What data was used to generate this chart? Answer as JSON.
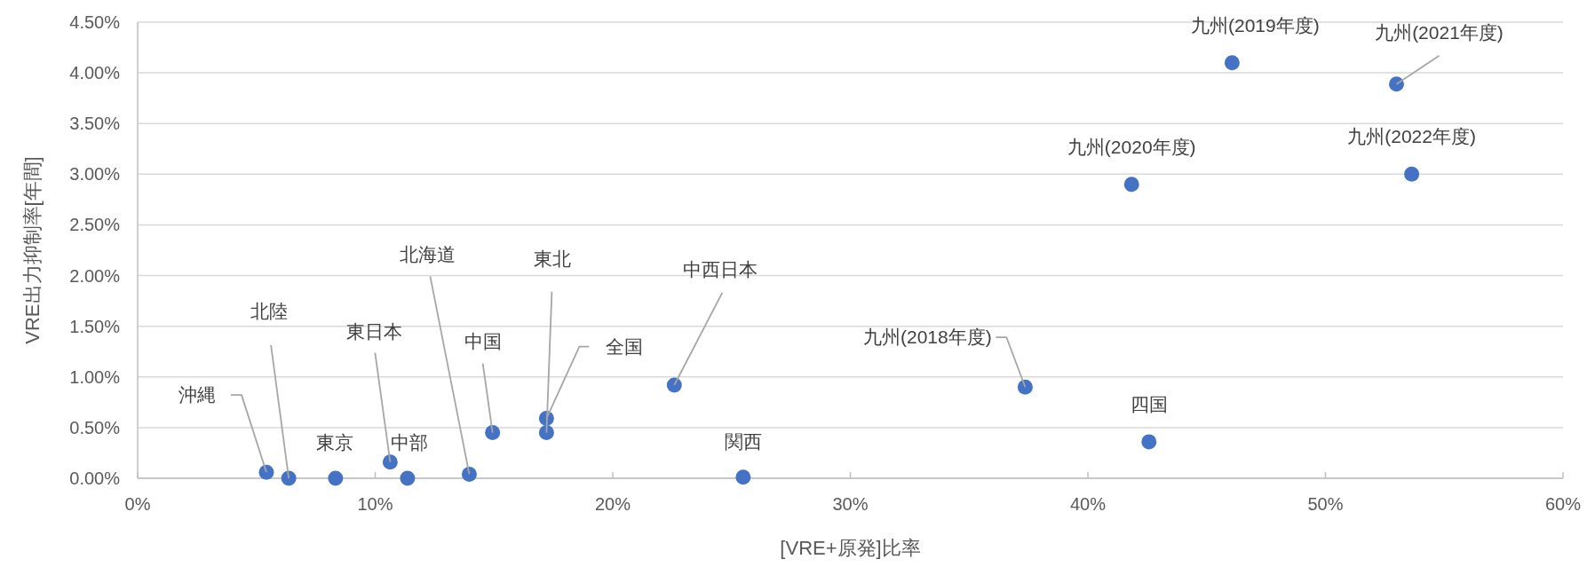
{
  "chart_data": {
    "type": "scatter",
    "xlabel": "[VRE+原発]比率",
    "ylabel": "VRE出力抑制率[年間]",
    "color": "#4472c4",
    "marker": "circle",
    "grid": "y",
    "x": [
      5.42,
      6.36,
      8.33,
      10.63,
      11.36,
      13.96,
      14.94,
      17.21,
      17.21,
      22.59,
      25.49,
      37.36,
      42.57,
      41.84,
      46.07,
      52.99,
      53.63
    ],
    "values": [
      0.06,
      0.0,
      0.0,
      0.16,
      0.0,
      0.04,
      0.45,
      0.59,
      0.45,
      0.92,
      0.01,
      0.9,
      0.36,
      2.9,
      4.1,
      3.89,
      3.0
    ],
    "xlim": [
      0,
      60
    ],
    "xticks": [
      {
        "value": 0,
        "label": "0%"
      },
      {
        "value": 10,
        "label": "10%"
      },
      {
        "value": 20,
        "label": "20%"
      },
      {
        "value": 30,
        "label": "30%"
      },
      {
        "value": 40,
        "label": "40%"
      },
      {
        "value": 50,
        "label": "50%"
      },
      {
        "value": 60,
        "label": "60%"
      }
    ],
    "ylim": [
      0,
      4.5
    ],
    "yticks": [
      {
        "value": 0,
        "label": "0.00%"
      },
      {
        "value": 0.5,
        "label": "0.50%"
      },
      {
        "value": 1,
        "label": "1.00%"
      },
      {
        "value": 1.5,
        "label": "1.50%"
      },
      {
        "value": 2,
        "label": "2.00%"
      },
      {
        "value": 2.5,
        "label": "2.50%"
      },
      {
        "value": 3,
        "label": "3.00%"
      },
      {
        "value": 3.5,
        "label": "3.50%"
      },
      {
        "value": 4,
        "label": "4.00%"
      },
      {
        "value": 4.5,
        "label": "4.50%"
      }
    ],
    "annotations": [
      {
        "text": "沖縄",
        "x": 5.42,
        "y": 0.06
      },
      {
        "text": "北陸",
        "x": 6.36,
        "y": 0.0
      },
      {
        "text": "東京",
        "x": 8.33,
        "y": 0.0
      },
      {
        "text": "東日本",
        "x": 10.63,
        "y": 0.16
      },
      {
        "text": "中部",
        "x": 11.36,
        "y": 0.0
      },
      {
        "text": "北海道",
        "x": 13.96,
        "y": 0.04
      },
      {
        "text": "中国",
        "x": 14.94,
        "y": 0.45
      },
      {
        "text": "全国",
        "x": 17.21,
        "y": 0.59
      },
      {
        "text": "東北",
        "x": 17.21,
        "y": 0.45
      },
      {
        "text": "中西日本",
        "x": 22.59,
        "y": 0.92
      },
      {
        "text": "関西",
        "x": 25.49,
        "y": 0.01
      },
      {
        "text": "九州(2018年度)",
        "x": 37.36,
        "y": 0.9
      },
      {
        "text": "四国",
        "x": 42.57,
        "y": 0.36
      },
      {
        "text": "九州(2020年度)",
        "x": 41.84,
        "y": 2.9
      },
      {
        "text": "九州(2019年度)",
        "x": 46.07,
        "y": 4.1
      },
      {
        "text": "九州(2021年度)",
        "x": 52.99,
        "y": 3.89
      },
      {
        "text": "九州(2022年度)",
        "x": 53.63,
        "y": 3.0
      }
    ]
  }
}
